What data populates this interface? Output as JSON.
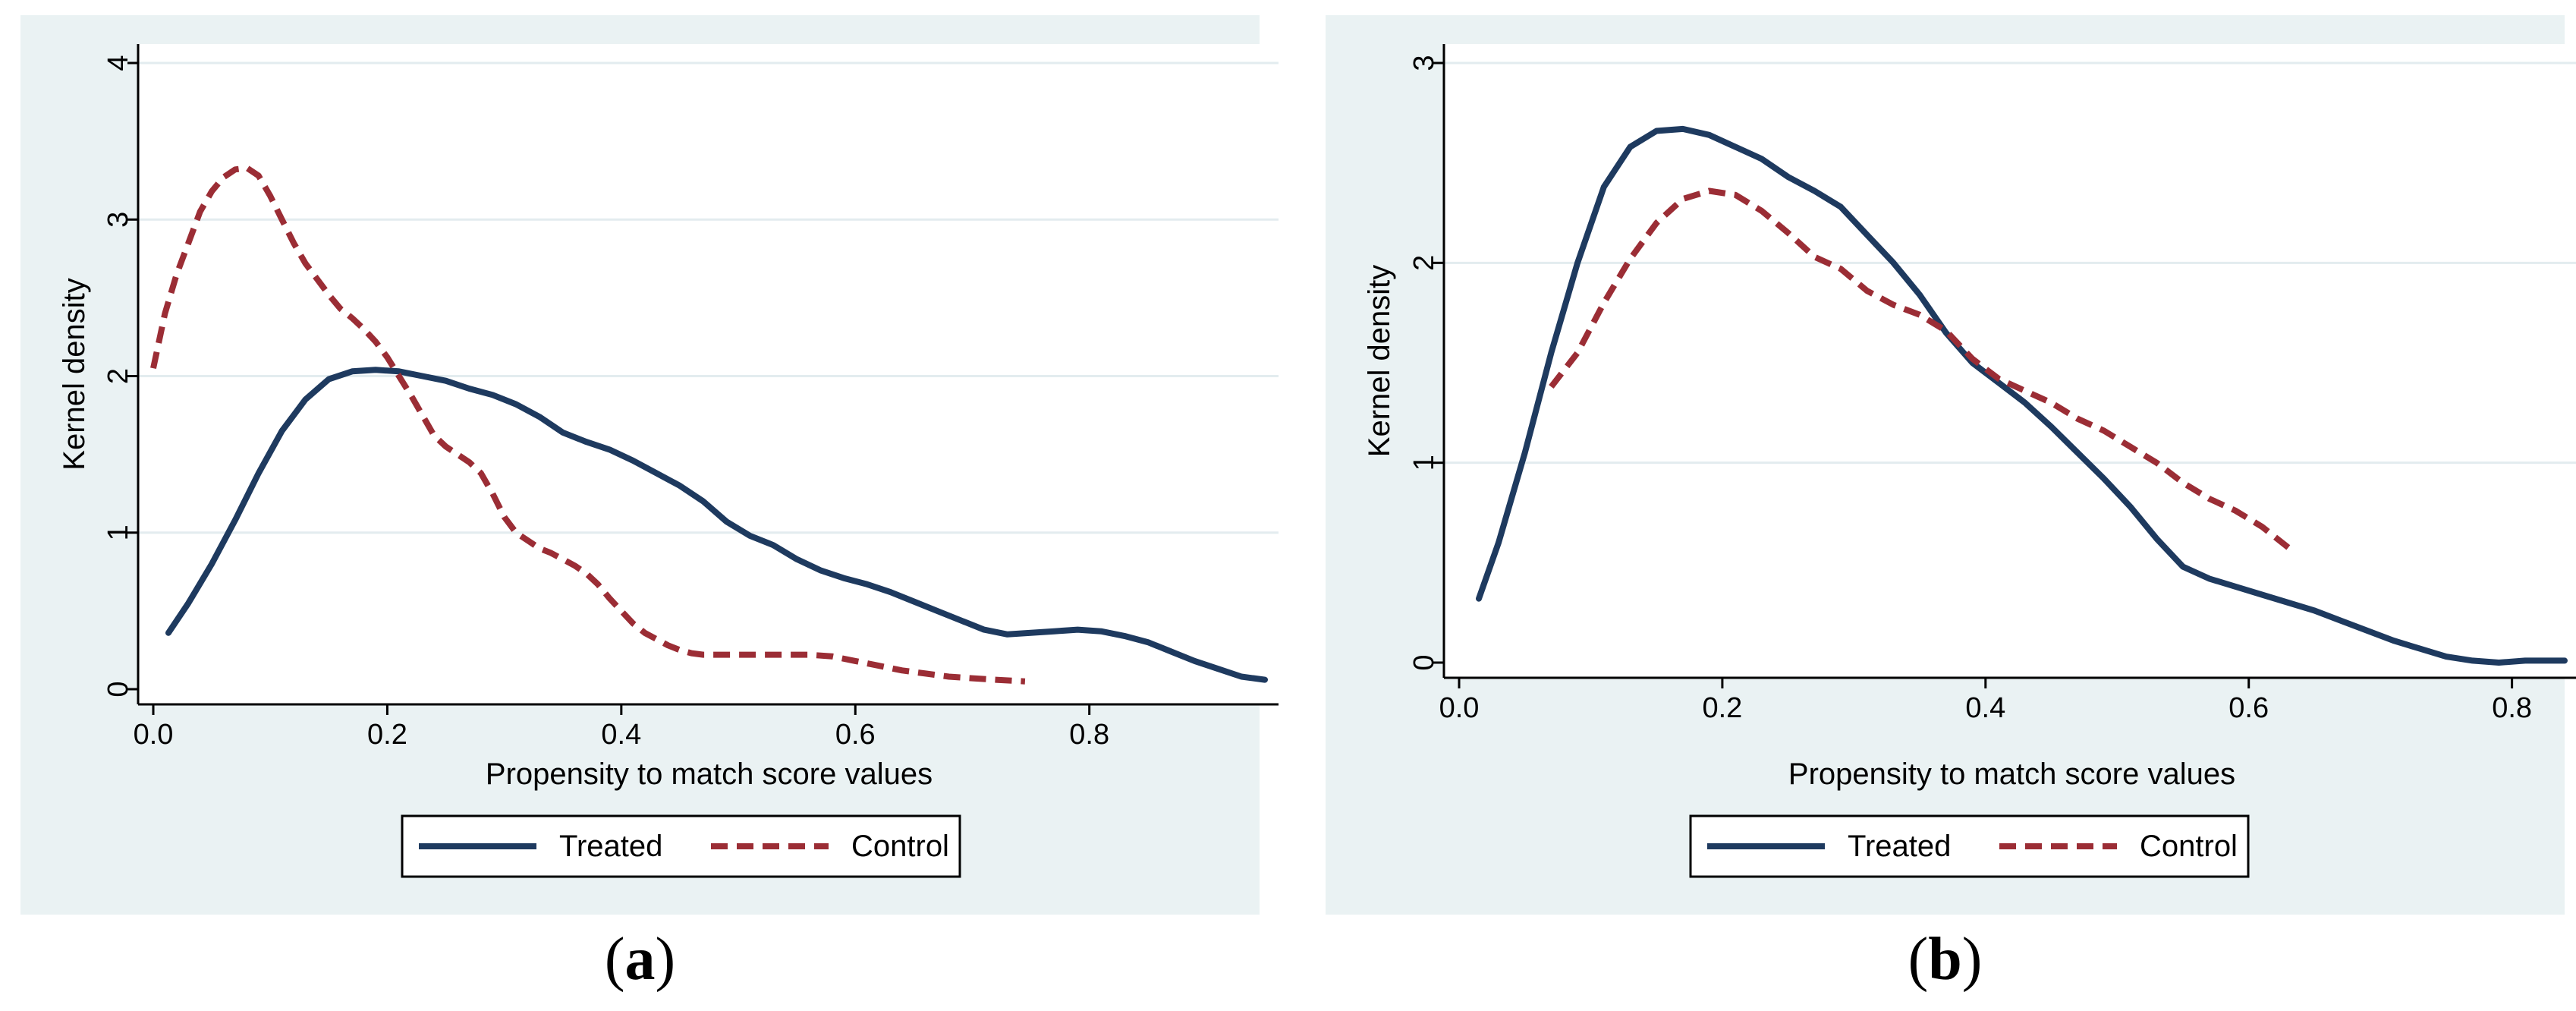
{
  "chart_data": [
    {
      "type": "line",
      "panel_label": "a",
      "panel_label_prefix": "(",
      "panel_label_suffix": ")",
      "title": "",
      "xlabel": "Propensity to match score values",
      "ylabel": "Kernel density",
      "xlim": [
        0,
        0.95
      ],
      "ylim": [
        0,
        4
      ],
      "xticks": [
        0,
        0.2,
        0.4,
        0.6,
        0.8
      ],
      "xtick_labels": [
        "0.0",
        "0.2",
        "0.4",
        "0.6",
        "0.8"
      ],
      "yticks": [
        0,
        1,
        2,
        3,
        4
      ],
      "ytick_labels": [
        "0",
        "1",
        "2",
        "3",
        "4"
      ],
      "grid": "horizontal",
      "legend_position": "bottom",
      "series": [
        {
          "name": "Treated",
          "style": "solid",
          "color": "#1e3a5f",
          "points": [
            [
              0.013,
              0.36
            ],
            [
              0.03,
              0.55
            ],
            [
              0.05,
              0.8
            ],
            [
              0.07,
              1.08
            ],
            [
              0.09,
              1.38
            ],
            [
              0.11,
              1.65
            ],
            [
              0.13,
              1.85
            ],
            [
              0.15,
              1.98
            ],
            [
              0.17,
              2.03
            ],
            [
              0.19,
              2.04
            ],
            [
              0.21,
              2.03
            ],
            [
              0.23,
              2.0
            ],
            [
              0.25,
              1.97
            ],
            [
              0.27,
              1.92
            ],
            [
              0.29,
              1.88
            ],
            [
              0.31,
              1.82
            ],
            [
              0.33,
              1.74
            ],
            [
              0.35,
              1.64
            ],
            [
              0.37,
              1.58
            ],
            [
              0.39,
              1.53
            ],
            [
              0.41,
              1.46
            ],
            [
              0.43,
              1.38
            ],
            [
              0.45,
              1.3
            ],
            [
              0.47,
              1.2
            ],
            [
              0.49,
              1.07
            ],
            [
              0.51,
              0.98
            ],
            [
              0.53,
              0.92
            ],
            [
              0.55,
              0.83
            ],
            [
              0.57,
              0.76
            ],
            [
              0.59,
              0.71
            ],
            [
              0.61,
              0.67
            ],
            [
              0.63,
              0.62
            ],
            [
              0.65,
              0.56
            ],
            [
              0.67,
              0.5
            ],
            [
              0.69,
              0.44
            ],
            [
              0.71,
              0.38
            ],
            [
              0.73,
              0.35
            ],
            [
              0.75,
              0.36
            ],
            [
              0.77,
              0.37
            ],
            [
              0.79,
              0.38
            ],
            [
              0.81,
              0.37
            ],
            [
              0.83,
              0.34
            ],
            [
              0.85,
              0.3
            ],
            [
              0.87,
              0.24
            ],
            [
              0.89,
              0.18
            ],
            [
              0.91,
              0.13
            ],
            [
              0.93,
              0.08
            ],
            [
              0.95,
              0.06
            ]
          ]
        },
        {
          "name": "Control",
          "style": "dashed",
          "color": "#9b2d35",
          "points": [
            [
              0.0,
              2.05
            ],
            [
              0.01,
              2.4
            ],
            [
              0.02,
              2.65
            ],
            [
              0.03,
              2.85
            ],
            [
              0.04,
              3.05
            ],
            [
              0.05,
              3.18
            ],
            [
              0.06,
              3.27
            ],
            [
              0.07,
              3.32
            ],
            [
              0.08,
              3.33
            ],
            [
              0.09,
              3.28
            ],
            [
              0.1,
              3.15
            ],
            [
              0.11,
              3.0
            ],
            [
              0.12,
              2.85
            ],
            [
              0.13,
              2.72
            ],
            [
              0.14,
              2.62
            ],
            [
              0.15,
              2.52
            ],
            [
              0.16,
              2.43
            ],
            [
              0.17,
              2.37
            ],
            [
              0.18,
              2.3
            ],
            [
              0.19,
              2.22
            ],
            [
              0.2,
              2.12
            ],
            [
              0.21,
              2.0
            ],
            [
              0.22,
              1.88
            ],
            [
              0.23,
              1.75
            ],
            [
              0.24,
              1.62
            ],
            [
              0.25,
              1.55
            ],
            [
              0.26,
              1.5
            ],
            [
              0.27,
              1.45
            ],
            [
              0.28,
              1.38
            ],
            [
              0.29,
              1.25
            ],
            [
              0.3,
              1.1
            ],
            [
              0.31,
              1.0
            ],
            [
              0.32,
              0.95
            ],
            [
              0.33,
              0.9
            ],
            [
              0.34,
              0.87
            ],
            [
              0.35,
              0.83
            ],
            [
              0.36,
              0.79
            ],
            [
              0.37,
              0.74
            ],
            [
              0.38,
              0.67
            ],
            [
              0.39,
              0.58
            ],
            [
              0.4,
              0.5
            ],
            [
              0.41,
              0.42
            ],
            [
              0.42,
              0.36
            ],
            [
              0.43,
              0.32
            ],
            [
              0.44,
              0.28
            ],
            [
              0.45,
              0.25
            ],
            [
              0.46,
              0.23
            ],
            [
              0.47,
              0.22
            ],
            [
              0.48,
              0.22
            ],
            [
              0.5,
              0.22
            ],
            [
              0.52,
              0.22
            ],
            [
              0.54,
              0.22
            ],
            [
              0.56,
              0.22
            ],
            [
              0.58,
              0.21
            ],
            [
              0.6,
              0.18
            ],
            [
              0.62,
              0.15
            ],
            [
              0.64,
              0.12
            ],
            [
              0.66,
              0.1
            ],
            [
              0.68,
              0.08
            ],
            [
              0.7,
              0.07
            ],
            [
              0.72,
              0.06
            ],
            [
              0.745,
              0.05
            ]
          ]
        }
      ]
    },
    {
      "type": "line",
      "panel_label": "b",
      "panel_label_prefix": "(",
      "panel_label_suffix": ")",
      "title": "",
      "xlabel": "Propensity to match score values",
      "ylabel": "Kernel density",
      "xlim": [
        0,
        0.84
      ],
      "ylim": [
        0,
        3
      ],
      "xticks": [
        0,
        0.2,
        0.4,
        0.6,
        0.8
      ],
      "xtick_labels": [
        "0.0",
        "0.2",
        "0.4",
        "0.6",
        "0.8"
      ],
      "yticks": [
        0,
        1,
        2,
        3
      ],
      "ytick_labels": [
        "0",
        "1",
        "2",
        "3"
      ],
      "grid": "horizontal",
      "legend_position": "bottom",
      "series": [
        {
          "name": "Treated",
          "style": "solid",
          "color": "#1e3a5f",
          "points": [
            [
              0.015,
              0.32
            ],
            [
              0.03,
              0.6
            ],
            [
              0.05,
              1.05
            ],
            [
              0.07,
              1.55
            ],
            [
              0.09,
              2.0
            ],
            [
              0.11,
              2.38
            ],
            [
              0.13,
              2.58
            ],
            [
              0.15,
              2.66
            ],
            [
              0.17,
              2.67
            ],
            [
              0.19,
              2.64
            ],
            [
              0.21,
              2.58
            ],
            [
              0.23,
              2.52
            ],
            [
              0.25,
              2.43
            ],
            [
              0.27,
              2.36
            ],
            [
              0.29,
              2.28
            ],
            [
              0.31,
              2.14
            ],
            [
              0.33,
              2.0
            ],
            [
              0.35,
              1.84
            ],
            [
              0.37,
              1.65
            ],
            [
              0.39,
              1.5
            ],
            [
              0.41,
              1.4
            ],
            [
              0.43,
              1.3
            ],
            [
              0.45,
              1.18
            ],
            [
              0.47,
              1.05
            ],
            [
              0.49,
              0.92
            ],
            [
              0.51,
              0.78
            ],
            [
              0.53,
              0.62
            ],
            [
              0.55,
              0.48
            ],
            [
              0.57,
              0.42
            ],
            [
              0.59,
              0.38
            ],
            [
              0.61,
              0.34
            ],
            [
              0.63,
              0.3
            ],
            [
              0.65,
              0.26
            ],
            [
              0.67,
              0.21
            ],
            [
              0.69,
              0.16
            ],
            [
              0.71,
              0.11
            ],
            [
              0.73,
              0.07
            ],
            [
              0.75,
              0.03
            ],
            [
              0.77,
              0.01
            ],
            [
              0.79,
              0.0
            ],
            [
              0.81,
              0.01
            ],
            [
              0.83,
              0.01
            ],
            [
              0.84,
              0.01
            ]
          ]
        },
        {
          "name": "Control",
          "style": "dashed",
          "color": "#9b2d35",
          "points": [
            [
              0.07,
              1.38
            ],
            [
              0.09,
              1.55
            ],
            [
              0.11,
              1.8
            ],
            [
              0.13,
              2.02
            ],
            [
              0.15,
              2.2
            ],
            [
              0.17,
              2.32
            ],
            [
              0.19,
              2.36
            ],
            [
              0.21,
              2.34
            ],
            [
              0.23,
              2.26
            ],
            [
              0.25,
              2.15
            ],
            [
              0.27,
              2.03
            ],
            [
              0.29,
              1.97
            ],
            [
              0.31,
              1.86
            ],
            [
              0.33,
              1.79
            ],
            [
              0.35,
              1.74
            ],
            [
              0.37,
              1.66
            ],
            [
              0.39,
              1.52
            ],
            [
              0.41,
              1.42
            ],
            [
              0.43,
              1.36
            ],
            [
              0.45,
              1.3
            ],
            [
              0.47,
              1.22
            ],
            [
              0.49,
              1.16
            ],
            [
              0.51,
              1.08
            ],
            [
              0.53,
              1.0
            ],
            [
              0.55,
              0.9
            ],
            [
              0.57,
              0.82
            ],
            [
              0.59,
              0.76
            ],
            [
              0.61,
              0.68
            ],
            [
              0.635,
              0.55
            ]
          ]
        }
      ]
    }
  ],
  "colors": {
    "outer_background": "#eaf2f3",
    "plot_background": "#ffffff",
    "grid": "#e3ecef",
    "treated": "#1e3a5f",
    "control": "#9b2d35"
  }
}
